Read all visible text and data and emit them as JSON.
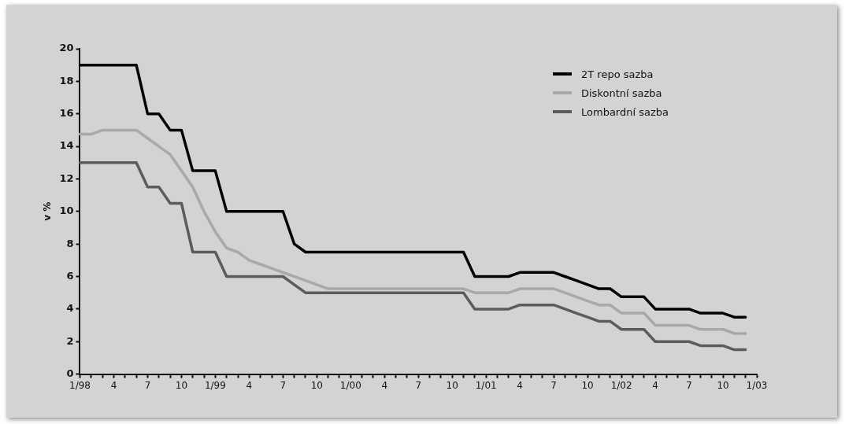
{
  "chart_data": {
    "type": "line",
    "ylabel": "v %",
    "categories": [
      "1/98",
      null,
      null,
      "4",
      null,
      null,
      "7",
      null,
      null,
      "10",
      null,
      null,
      "1/99",
      null,
      null,
      "4",
      null,
      null,
      "7",
      null,
      null,
      "10",
      null,
      null,
      "1/00",
      null,
      null,
      "4",
      null,
      null,
      "7",
      null,
      null,
      "10",
      null,
      null,
      "1/01",
      null,
      null,
      "4",
      null,
      null,
      "7",
      null,
      null,
      "10",
      null,
      null,
      "1/02",
      null,
      null,
      "4",
      null,
      null,
      "7",
      null,
      null,
      "10",
      null,
      null,
      "1/03"
    ],
    "series": [
      {
        "name": "2T repo  sazba",
        "color": "#000000",
        "values": [
          19,
          19,
          19,
          19,
          19,
          19,
          16,
          16,
          15,
          15,
          12.5,
          12.5,
          12.5,
          10,
          10,
          10,
          10,
          10,
          10,
          8,
          7.5,
          7.5,
          7.5,
          7.5,
          7.5,
          7.5,
          7.5,
          7.5,
          7.5,
          7.5,
          7.5,
          7.5,
          7.5,
          7.5,
          7.5,
          6,
          6,
          6,
          6,
          6.25,
          6.25,
          6.25,
          6.25,
          6,
          5.75,
          5.5,
          5.25,
          5.25,
          4.75,
          4.75,
          4.75,
          4,
          4,
          4,
          4,
          3.75,
          3.75,
          3.75,
          3.5,
          3.5,
          null
        ]
      },
      {
        "name": "Diskontní sazba",
        "color": "#a9a9a9",
        "values": [
          14.75,
          14.75,
          15,
          15,
          15,
          15,
          14.5,
          14,
          13.5,
          12.5,
          11.5,
          10,
          8.75,
          7.75,
          7.5,
          7,
          6.75,
          6.5,
          6.25,
          6,
          5.75,
          5.5,
          5.25,
          5.25,
          5.25,
          5.25,
          5.25,
          5.25,
          5.25,
          5.25,
          5.25,
          5.25,
          5.25,
          5.25,
          5.25,
          5,
          5,
          5,
          5,
          5.25,
          5.25,
          5.25,
          5.25,
          5,
          4.75,
          4.5,
          4.25,
          4.25,
          3.75,
          3.75,
          3.75,
          3,
          3,
          3,
          3,
          2.75,
          2.75,
          2.75,
          2.5,
          2.5,
          null
        ]
      },
      {
        "name": "Lombardní sazba",
        "color": "#5c5c5c",
        "values": [
          13,
          13,
          13,
          13,
          13,
          13,
          11.5,
          11.5,
          10.5,
          10.5,
          7.5,
          7.5,
          7.5,
          6,
          6,
          6,
          6,
          6,
          6,
          5.5,
          5,
          5,
          5,
          5,
          5,
          5,
          5,
          5,
          5,
          5,
          5,
          5,
          5,
          5,
          5,
          4,
          4,
          4,
          4,
          4.25,
          4.25,
          4.25,
          4.25,
          4,
          3.75,
          3.5,
          3.25,
          3.25,
          2.75,
          2.75,
          2.75,
          2,
          2,
          2,
          2,
          1.75,
          1.75,
          1.75,
          1.5,
          1.5,
          null
        ]
      }
    ],
    "ylim": [
      0,
      20
    ],
    "yticks": [
      0,
      2,
      4,
      6,
      8,
      10,
      12,
      14,
      16,
      18,
      20
    ],
    "legend": "top right"
  }
}
